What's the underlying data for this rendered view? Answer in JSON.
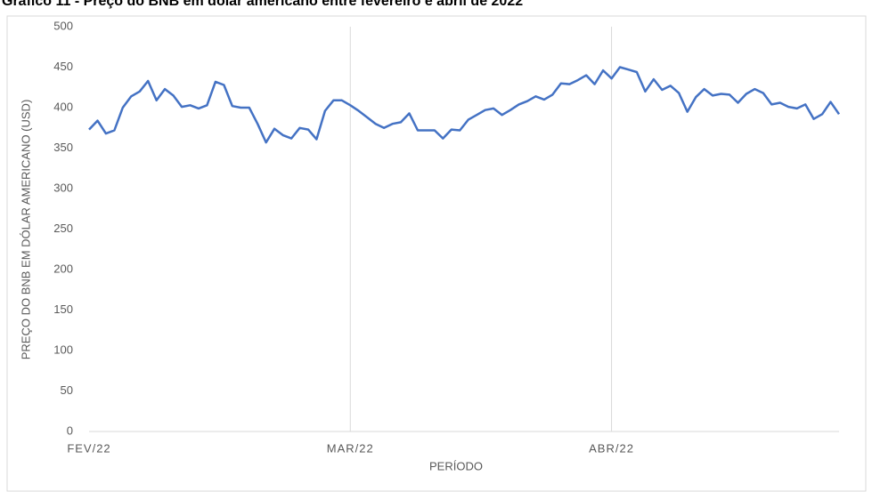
{
  "chart_data": {
    "type": "line",
    "title": "Gráfico 11 - Preço do BNB em dólar americano entre fevereiro e abril de 2022",
    "x_label": "PERÍODO",
    "y_label": "PREÇO DO BNB EM DÓLAR AMERICANO (USD)",
    "categories": [
      "FEV/22",
      null,
      null,
      null,
      null,
      null,
      null,
      null,
      null,
      null,
      null,
      null,
      null,
      null,
      null,
      null,
      null,
      null,
      null,
      null,
      null,
      null,
      null,
      null,
      null,
      null,
      null,
      null,
      null,
      null,
      null,
      "MAR/22",
      null,
      null,
      null,
      null,
      null,
      null,
      null,
      null,
      null,
      null,
      null,
      null,
      null,
      null,
      null,
      null,
      null,
      null,
      null,
      null,
      null,
      null,
      null,
      null,
      null,
      null,
      null,
      null,
      null,
      null,
      "ABR/22",
      null,
      null,
      null,
      null,
      null,
      null,
      null,
      null,
      null,
      null,
      null,
      null,
      null,
      null,
      null,
      null,
      null,
      null,
      null,
      null,
      null,
      null,
      null,
      null,
      null,
      null,
      null
    ],
    "values": [
      373,
      384,
      368,
      372,
      400,
      414,
      420,
      433,
      409,
      423,
      415,
      401,
      403,
      399,
      403,
      432,
      428,
      402,
      400,
      400,
      380,
      357,
      374,
      366,
      362,
      375,
      373,
      361,
      396,
      409,
      409,
      403,
      396,
      388,
      380,
      375,
      380,
      382,
      393,
      372,
      372,
      372,
      362,
      373,
      372,
      385,
      391,
      397,
      399,
      391,
      397,
      404,
      408,
      414,
      410,
      416,
      430,
      429,
      434,
      440,
      429,
      446,
      436,
      450,
      447,
      444,
      420,
      435,
      422,
      427,
      418,
      395,
      413,
      423,
      415,
      417,
      416,
      406,
      417,
      423,
      418,
      404,
      406,
      401,
      399,
      404,
      386,
      392,
      407,
      392
    ],
    "color": "#4472c4",
    "ylim": [
      0,
      500
    ],
    "yticks": [
      0,
      50,
      100,
      150,
      200,
      250,
      300,
      350,
      400,
      450,
      500
    ],
    "x_grid": true
  }
}
